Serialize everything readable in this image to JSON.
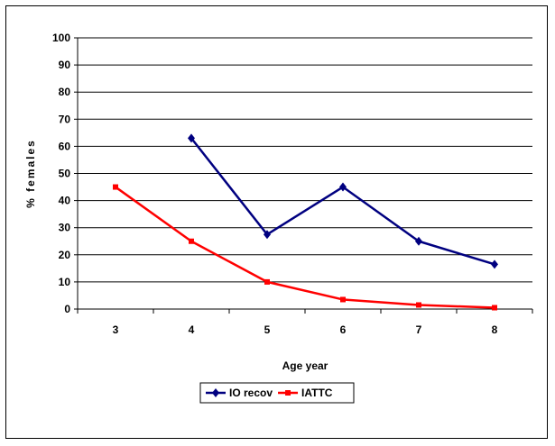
{
  "chart_data": {
    "type": "line",
    "title": "",
    "xlabel": "Age year",
    "ylabel": "% females",
    "categories": [
      "3",
      "4",
      "5",
      "6",
      "7",
      "8"
    ],
    "ylim": [
      0,
      100
    ],
    "yticks": [
      0,
      10,
      20,
      30,
      40,
      50,
      60,
      70,
      80,
      90,
      100
    ],
    "grid": "horizontal",
    "legend_position": "bottom-center",
    "series": [
      {
        "name": "IO recov",
        "color": "#000080",
        "marker": "diamond",
        "values": [
          null,
          63,
          27.5,
          45,
          25,
          16.5
        ]
      },
      {
        "name": "IATTC",
        "color": "#ff0000",
        "marker": "square",
        "values": [
          45,
          25,
          10,
          3.5,
          1.5,
          0.5
        ]
      }
    ]
  }
}
